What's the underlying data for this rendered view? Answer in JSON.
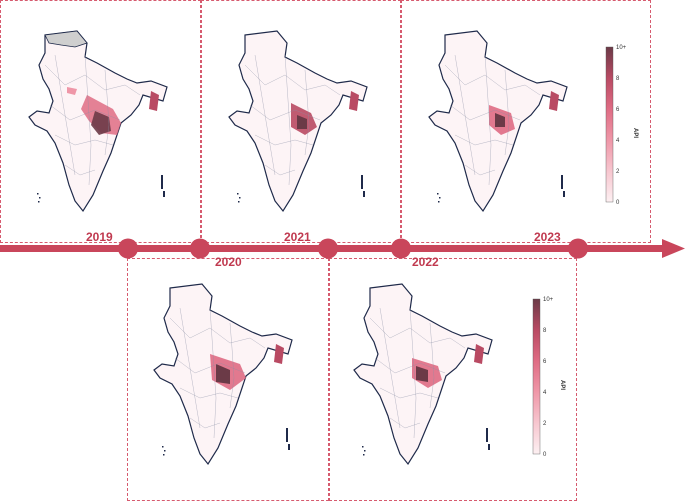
{
  "years": [
    "2019",
    "2020",
    "2021",
    "2022",
    "2023"
  ],
  "colorbar": {
    "label": "API",
    "ticks": [
      "0",
      "2",
      "4",
      "6",
      "8",
      "10+"
    ],
    "colors": [
      "#fdf0f2",
      "#f7c6cf",
      "#ef97a8",
      "#df6c84",
      "#b94a63",
      "#6b3a47"
    ]
  },
  "colors": {
    "timeline": "#c9465b",
    "panel_border": "#d65a6e",
    "boundary": "#1f2a4a",
    "no_data": "#cfcfcf"
  }
}
